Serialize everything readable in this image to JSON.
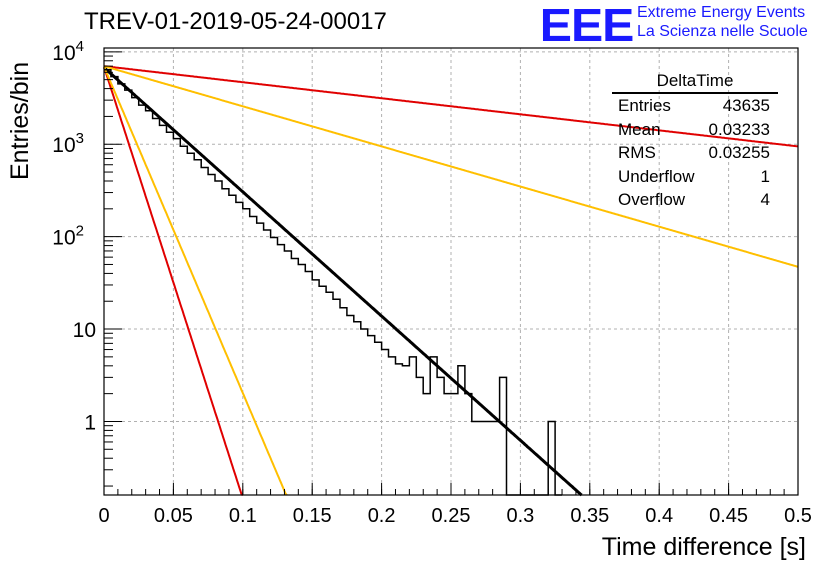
{
  "header": {
    "title": "TREV-01-2019-05-24-00017",
    "logo": "EEE",
    "logo_line1": "Extreme Energy Events",
    "logo_line2": "La Scienza nelle Scuole"
  },
  "stats_box": {
    "name": "DeltaTime",
    "rows": [
      {
        "label": "Entries",
        "value": "43635"
      },
      {
        "label": "Mean",
        "value": "0.03233"
      },
      {
        "label": "RMS",
        "value": "0.03255"
      },
      {
        "label": "Underflow",
        "value": "1"
      },
      {
        "label": "Overflow",
        "value": "4"
      }
    ]
  },
  "chart_data": {
    "type": "line",
    "title": "TREV-01-2019-05-24-00017",
    "xlabel": "Time difference [s]",
    "ylabel": "Entries/bin",
    "xlim": [
      0,
      0.5
    ],
    "ylim": [
      0.16,
      11000
    ],
    "yscale": "log",
    "grid": true,
    "x_ticks": [
      "0",
      "0.05",
      "0.1",
      "0.15",
      "0.2",
      "0.25",
      "0.3",
      "0.35",
      "0.4",
      "0.45",
      "0.5"
    ],
    "y_ticks": [
      {
        "value": 1,
        "label": "1"
      },
      {
        "value": 10,
        "label": "10"
      },
      {
        "value": 100,
        "label": "10^2"
      },
      {
        "value": 1000,
        "label": "10^3"
      },
      {
        "value": 10000,
        "label": "10^4"
      }
    ],
    "histogram": {
      "name": "DeltaTime",
      "bin_width": 0.005,
      "color": "#000000",
      "values": [
        6400,
        5400,
        4500,
        3850,
        3200,
        2650,
        2300,
        1900,
        1600,
        1350,
        1150,
        950,
        800,
        680,
        560,
        470,
        400,
        330,
        280,
        235,
        200,
        165,
        140,
        118,
        98,
        82,
        70,
        58,
        50,
        42,
        34,
        29,
        25,
        21,
        17,
        14,
        12,
        10,
        8.5,
        7.2,
        6,
        5,
        4.2,
        3.5,
        3,
        2.5,
        2,
        1.7,
        1.4,
        1.2,
        1,
        0.85,
        0.7,
        0.6,
        0.5,
        0.42,
        0.35,
        0.3,
        0.25,
        0.2,
        0.17,
        0.14,
        0.12,
        0.1
      ],
      "observed_overrides": [
        {
          "bin": 43,
          "value": 4
        },
        {
          "bin": 44,
          "value": 5
        },
        {
          "bin": 45,
          "value": 3
        },
        {
          "bin": 46,
          "value": 2
        },
        {
          "bin": 47,
          "value": 5
        },
        {
          "bin": 48,
          "value": 3
        },
        {
          "bin": 49,
          "value": 2
        },
        {
          "bin": 50,
          "value": 2
        },
        {
          "bin": 51,
          "value": 4
        },
        {
          "bin": 52,
          "value": 2
        },
        {
          "bin": 53,
          "value": 1
        },
        {
          "bin": 54,
          "value": 1
        },
        {
          "bin": 55,
          "value": 1
        },
        {
          "bin": 56,
          "value": 1
        },
        {
          "bin": 57,
          "value": 3
        },
        {
          "bin": 58,
          "value": 0
        },
        {
          "bin": 59,
          "value": 0
        },
        {
          "bin": 60,
          "value": 0
        },
        {
          "bin": 61,
          "value": 0
        },
        {
          "bin": 62,
          "value": 0
        },
        {
          "bin": 63,
          "value": 0
        },
        {
          "bin": 64,
          "value": 1
        },
        {
          "bin": 65,
          "value": 0
        }
      ]
    },
    "series": [
      {
        "name": "fit",
        "color": "#000000",
        "type": "exp",
        "amplitude": 6750,
        "tau": 0.0323
      },
      {
        "name": "red-steep",
        "color": "#e00000",
        "type": "exp",
        "amplitude": 6900,
        "tau": 0.0093
      },
      {
        "name": "red-flat",
        "color": "#e00000",
        "type": "exp",
        "amplitude": 7000,
        "tau": 0.25
      },
      {
        "name": "orange-steep",
        "color": "#ffbf00",
        "type": "exp",
        "amplitude": 6900,
        "tau": 0.0123
      },
      {
        "name": "orange-flat",
        "color": "#ffbf00",
        "type": "exp",
        "amplitude": 7000,
        "tau": 0.1
      },
      {
        "name": "fit-black-thin",
        "color": "#000000",
        "type": "exp",
        "amplitude": 6750,
        "tau": 0.0323
      }
    ]
  }
}
